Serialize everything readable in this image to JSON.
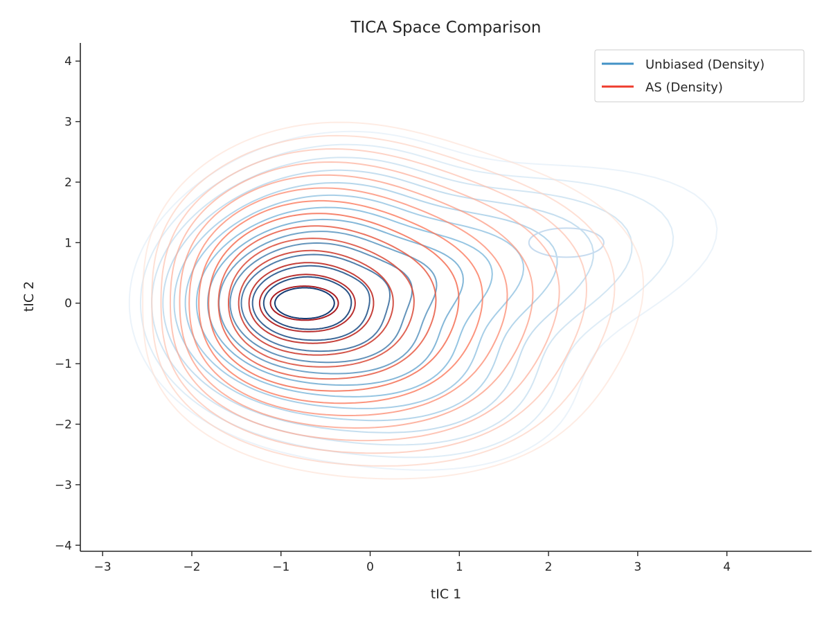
{
  "chart_data": {
    "type": "contour",
    "title": "TICA Space Comparison",
    "xlabel": "tIC 1",
    "ylabel": "tIC 2",
    "xlim": [
      -3.25,
      4.95
    ],
    "ylim": [
      -4.1,
      4.3
    ],
    "xticks": [
      -3,
      -2,
      -1,
      0,
      1,
      2,
      3,
      4
    ],
    "yticks": [
      -4,
      -3,
      -2,
      -1,
      0,
      1,
      2,
      3,
      4
    ],
    "xtick_labels": [
      "−3",
      "−2",
      "−1",
      "0",
      "1",
      "2",
      "3",
      "4"
    ],
    "ytick_labels": [
      "−4",
      "−3",
      "−2",
      "−1",
      "0",
      "1",
      "2",
      "3",
      "4"
    ],
    "grid": false,
    "legend": {
      "placement": "top-right"
    },
    "series": [
      {
        "name": "Unbiased (Density)",
        "color": "#4292c6",
        "colormap": "Blues",
        "density_peak": [
          -0.75,
          0.0
        ],
        "secondary_mode": [
          2.2,
          1.0
        ],
        "levels": 14
      },
      {
        "name": "AS (Density)",
        "color": "#ef3b2c",
        "colormap": "Reds",
        "density_peak": [
          -0.75,
          0.0
        ],
        "levels": 14
      }
    ]
  }
}
